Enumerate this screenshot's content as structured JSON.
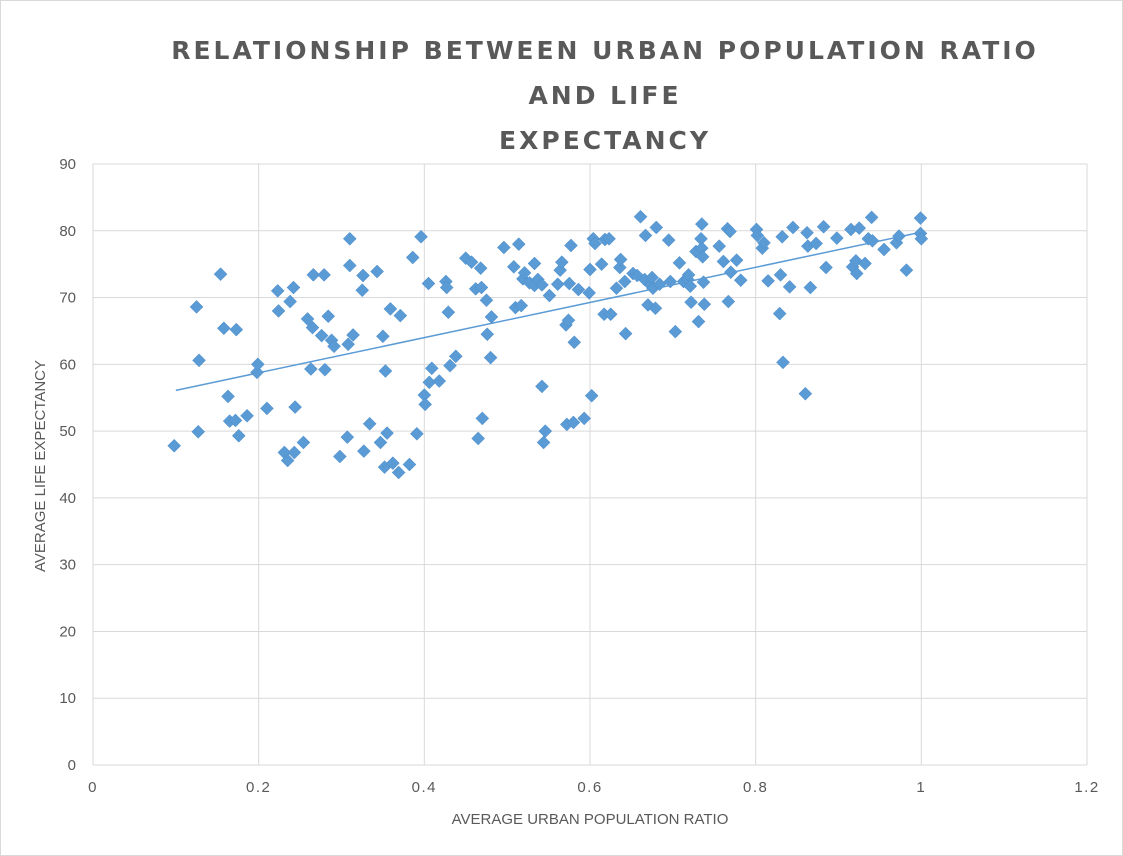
{
  "chart_data": {
    "type": "scatter",
    "title_lines": [
      "RELATIONSHIP BETWEEN URBAN POPULATION RATIO",
      "AND LIFE",
      "EXPECTANCY"
    ],
    "xlabel": "AVERAGE URBAN POPULATION RATIO",
    "ylabel": "AVERAGE LIFE EXPECTANCY",
    "xlim": [
      0,
      1.2
    ],
    "ylim": [
      0,
      90
    ],
    "x_ticks": [
      0,
      0.2,
      0.4,
      0.6,
      0.8,
      1,
      1.2
    ],
    "x_tick_labels": [
      "0",
      "0.2",
      "0.4",
      "0.6",
      "0.8",
      "1",
      "1.2"
    ],
    "y_ticks": [
      0,
      10,
      20,
      30,
      40,
      50,
      60,
      70,
      80,
      90
    ],
    "y_tick_labels": [
      "0",
      "10",
      "20",
      "30",
      "40",
      "50",
      "60",
      "70",
      "80",
      "90"
    ],
    "grid": true,
    "marker": "diamond",
    "color": "#5b9bd5",
    "trendline": {
      "type": "linear",
      "from": [
        0.1,
        56.1
      ],
      "to": [
        1.0,
        79.8
      ]
    },
    "points": [
      [
        0.098,
        47.8
      ],
      [
        0.125,
        68.6
      ],
      [
        0.128,
        60.6
      ],
      [
        0.127,
        49.9
      ],
      [
        0.154,
        73.5
      ],
      [
        0.158,
        65.4
      ],
      [
        0.163,
        55.2
      ],
      [
        0.165,
        51.5
      ],
      [
        0.172,
        51.6
      ],
      [
        0.173,
        65.2
      ],
      [
        0.176,
        49.3
      ],
      [
        0.186,
        52.3
      ],
      [
        0.198,
        58.8
      ],
      [
        0.199,
        60.0
      ],
      [
        0.21,
        53.4
      ],
      [
        0.223,
        71.0
      ],
      [
        0.224,
        68.0
      ],
      [
        0.231,
        46.8
      ],
      [
        0.235,
        45.6
      ],
      [
        0.238,
        69.4
      ],
      [
        0.242,
        71.5
      ],
      [
        0.243,
        46.8
      ],
      [
        0.244,
        53.6
      ],
      [
        0.254,
        48.3
      ],
      [
        0.259,
        66.8
      ],
      [
        0.263,
        59.3
      ],
      [
        0.265,
        65.5
      ],
      [
        0.266,
        73.4
      ],
      [
        0.276,
        64.3
      ],
      [
        0.279,
        73.4
      ],
      [
        0.28,
        59.2
      ],
      [
        0.284,
        67.2
      ],
      [
        0.288,
        63.6
      ],
      [
        0.291,
        62.7
      ],
      [
        0.298,
        46.2
      ],
      [
        0.307,
        49.1
      ],
      [
        0.308,
        63.0
      ],
      [
        0.31,
        78.8
      ],
      [
        0.31,
        74.8
      ],
      [
        0.314,
        64.4
      ],
      [
        0.325,
        71.1
      ],
      [
        0.326,
        73.3
      ],
      [
        0.327,
        47.0
      ],
      [
        0.334,
        51.1
      ],
      [
        0.343,
        73.9
      ],
      [
        0.347,
        48.3
      ],
      [
        0.35,
        64.2
      ],
      [
        0.352,
        44.6
      ],
      [
        0.353,
        59.0
      ],
      [
        0.355,
        49.7
      ],
      [
        0.359,
        68.3
      ],
      [
        0.362,
        45.2
      ],
      [
        0.369,
        43.8
      ],
      [
        0.371,
        67.3
      ],
      [
        0.382,
        45.0
      ],
      [
        0.386,
        76.0
      ],
      [
        0.391,
        49.6
      ],
      [
        0.396,
        79.1
      ],
      [
        0.4,
        55.4
      ],
      [
        0.401,
        54.0
      ],
      [
        0.405,
        72.1
      ],
      [
        0.406,
        57.3
      ],
      [
        0.409,
        59.4
      ],
      [
        0.418,
        57.5
      ],
      [
        0.426,
        72.4
      ],
      [
        0.427,
        71.5
      ],
      [
        0.429,
        67.8
      ],
      [
        0.431,
        59.8
      ],
      [
        0.438,
        61.2
      ],
      [
        0.45,
        75.9
      ],
      [
        0.457,
        75.3
      ],
      [
        0.462,
        71.3
      ],
      [
        0.465,
        48.9
      ],
      [
        0.469,
        71.5
      ],
      [
        0.468,
        74.4
      ],
      [
        0.47,
        51.9
      ],
      [
        0.475,
        69.6
      ],
      [
        0.476,
        64.5
      ],
      [
        0.48,
        61.0
      ],
      [
        0.481,
        67.1
      ],
      [
        0.496,
        77.5
      ],
      [
        0.508,
        74.6
      ],
      [
        0.51,
        68.5
      ],
      [
        0.514,
        78.0
      ],
      [
        0.517,
        68.8
      ],
      [
        0.519,
        72.8
      ],
      [
        0.521,
        73.7
      ],
      [
        0.527,
        72.2
      ],
      [
        0.533,
        71.8
      ],
      [
        0.537,
        72.7
      ],
      [
        0.533,
        75.1
      ],
      [
        0.542,
        56.7
      ],
      [
        0.544,
        48.3
      ],
      [
        0.546,
        50.0
      ],
      [
        0.542,
        71.9
      ],
      [
        0.551,
        70.3
      ],
      [
        0.561,
        72.0
      ],
      [
        0.564,
        74.1
      ],
      [
        0.566,
        75.3
      ],
      [
        0.571,
        65.9
      ],
      [
        0.572,
        51.0
      ],
      [
        0.574,
        66.6
      ],
      [
        0.575,
        72.1
      ],
      [
        0.577,
        77.8
      ],
      [
        0.58,
        51.3
      ],
      [
        0.581,
        63.3
      ],
      [
        0.586,
        71.2
      ],
      [
        0.593,
        51.9
      ],
      [
        0.599,
        70.7
      ],
      [
        0.6,
        74.2
      ],
      [
        0.602,
        55.3
      ],
      [
        0.604,
        78.8
      ],
      [
        0.606,
        78.1
      ],
      [
        0.614,
        75.0
      ],
      [
        0.617,
        67.5
      ],
      [
        0.618,
        78.7
      ],
      [
        0.623,
        78.8
      ],
      [
        0.625,
        67.5
      ],
      [
        0.632,
        71.4
      ],
      [
        0.636,
        74.5
      ],
      [
        0.637,
        75.7
      ],
      [
        0.642,
        72.4
      ],
      [
        0.643,
        64.6
      ],
      [
        0.652,
        73.6
      ],
      [
        0.657,
        73.3
      ],
      [
        0.661,
        82.1
      ],
      [
        0.666,
        72.7
      ],
      [
        0.667,
        79.3
      ],
      [
        0.67,
        68.9
      ],
      [
        0.673,
        71.9
      ],
      [
        0.675,
        73.0
      ],
      [
        0.676,
        71.4
      ],
      [
        0.68,
        80.5
      ],
      [
        0.679,
        68.4
      ],
      [
        0.684,
        72.0
      ],
      [
        0.695,
        78.6
      ],
      [
        0.697,
        72.4
      ],
      [
        0.703,
        64.9
      ],
      [
        0.708,
        75.2
      ],
      [
        0.713,
        72.4
      ],
      [
        0.718,
        72.7
      ],
      [
        0.719,
        73.4
      ],
      [
        0.721,
        71.7
      ],
      [
        0.722,
        69.3
      ],
      [
        0.728,
        76.9
      ],
      [
        0.731,
        66.4
      ],
      [
        0.735,
        81.0
      ],
      [
        0.734,
        78.8
      ],
      [
        0.735,
        77.4
      ],
      [
        0.736,
        76.1
      ],
      [
        0.737,
        72.3
      ],
      [
        0.738,
        69.0
      ],
      [
        0.756,
        77.7
      ],
      [
        0.761,
        75.4
      ],
      [
        0.766,
        80.3
      ],
      [
        0.767,
        69.4
      ],
      [
        0.769,
        79.9
      ],
      [
        0.77,
        73.8
      ],
      [
        0.777,
        75.6
      ],
      [
        0.782,
        72.6
      ],
      [
        0.801,
        80.2
      ],
      [
        0.802,
        79.3
      ],
      [
        0.808,
        77.4
      ],
      [
        0.81,
        78.2
      ],
      [
        0.815,
        72.5
      ],
      [
        0.829,
        67.6
      ],
      [
        0.83,
        73.4
      ],
      [
        0.832,
        79.1
      ],
      [
        0.833,
        60.3
      ],
      [
        0.841,
        71.6
      ],
      [
        0.845,
        80.5
      ],
      [
        0.86,
        55.6
      ],
      [
        0.862,
        79.7
      ],
      [
        0.863,
        77.7
      ],
      [
        0.866,
        71.5
      ],
      [
        0.873,
        78.1
      ],
      [
        0.882,
        80.6
      ],
      [
        0.885,
        74.5
      ],
      [
        0.898,
        78.9
      ],
      [
        0.915,
        80.2
      ],
      [
        0.917,
        74.6
      ],
      [
        0.921,
        75.5
      ],
      [
        0.922,
        73.6
      ],
      [
        0.925,
        80.4
      ],
      [
        0.932,
        75.1
      ],
      [
        0.936,
        78.8
      ],
      [
        0.94,
        82.0
      ],
      [
        0.941,
        78.5
      ],
      [
        0.955,
        77.2
      ],
      [
        0.97,
        78.2
      ],
      [
        0.973,
        79.2
      ],
      [
        0.982,
        74.1
      ],
      [
        0.999,
        81.9
      ],
      [
        0.999,
        79.6
      ],
      [
        1.0,
        78.8
      ]
    ]
  }
}
